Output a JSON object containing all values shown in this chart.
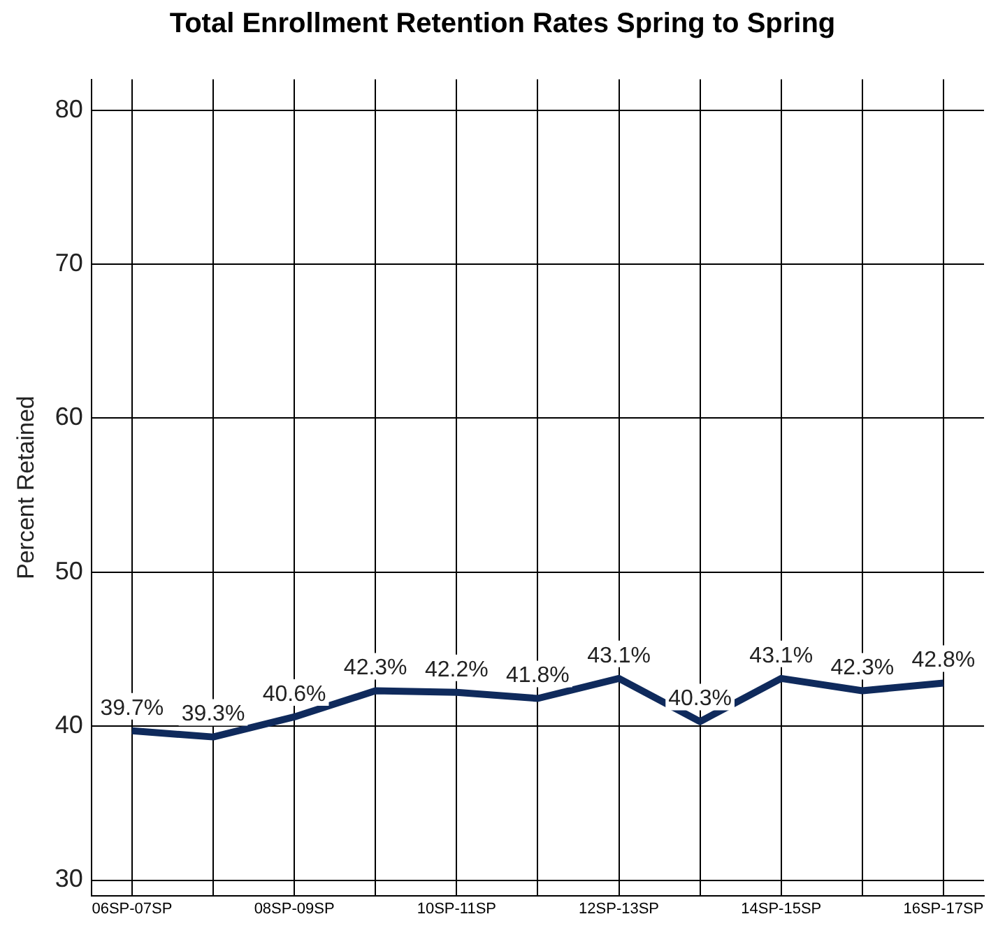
{
  "chart_data": {
    "type": "line",
    "title": "Total Enrollment Retention Rates Spring to Spring",
    "ylabel": "Percent Retained",
    "categories": [
      "06SP-07SP",
      null,
      "08SP-09SP",
      null,
      "10SP-11SP",
      null,
      "12SP-13SP",
      null,
      "14SP-15SP",
      null,
      "16SP-17SP"
    ],
    "series": [
      {
        "color": "#0f2a5c",
        "values": [
          39.7,
          39.3,
          40.6,
          42.3,
          42.2,
          41.8,
          43.1,
          40.3,
          43.1,
          42.3,
          42.8
        ],
        "value_labels": [
          "39.7%",
          "39.3%",
          "40.6%",
          "42.3%",
          "42.2%",
          "41.8%",
          "43.1%",
          "40.3%",
          "43.1%",
          "42.3%",
          "42.8%"
        ]
      }
    ],
    "ylim": [
      29,
      82
    ],
    "yticks": [
      30,
      40,
      50,
      60,
      70,
      80
    ],
    "grid": true,
    "legend": false,
    "marker": "none",
    "line_style": "solid"
  }
}
